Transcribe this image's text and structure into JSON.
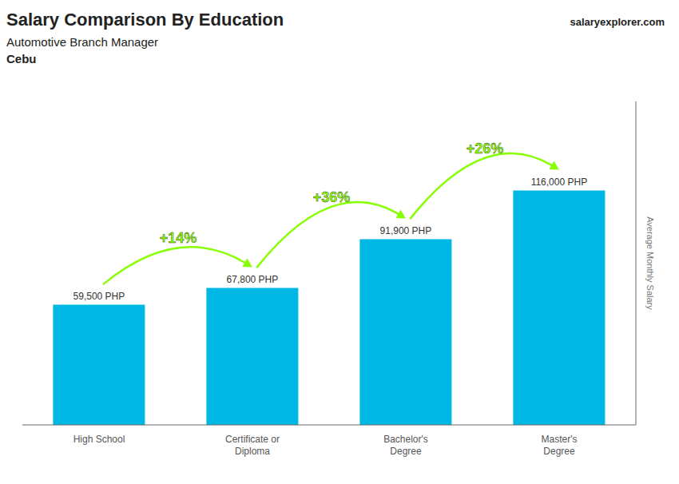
{
  "chart_data": {
    "type": "bar",
    "title": "Salary Comparison By Education",
    "subtitle": "Automotive Branch Manager",
    "location": "Cebu",
    "source": "salaryexplorer.com",
    "categories": [
      "High School",
      "Certificate or\nDiploma",
      "Bachelor's\nDegree",
      "Master's\nDegree"
    ],
    "values": [
      59500,
      67800,
      91900,
      116000
    ],
    "value_labels": [
      "59,500 PHP",
      "67,800 PHP",
      "91,900 PHP",
      "116,000 PHP"
    ],
    "data_labels": true,
    "color": "#00b8e6",
    "ylabel": "Average Monthly Salary",
    "ylim": [
      0,
      160000
    ],
    "grid": false,
    "tick_labels": "x",
    "annotations": [
      {
        "text": "+14%",
        "color": "#88ff00"
      },
      {
        "text": "+36%",
        "color": "#88ff00"
      },
      {
        "text": "+26%",
        "color": "#88ff00"
      }
    ]
  }
}
